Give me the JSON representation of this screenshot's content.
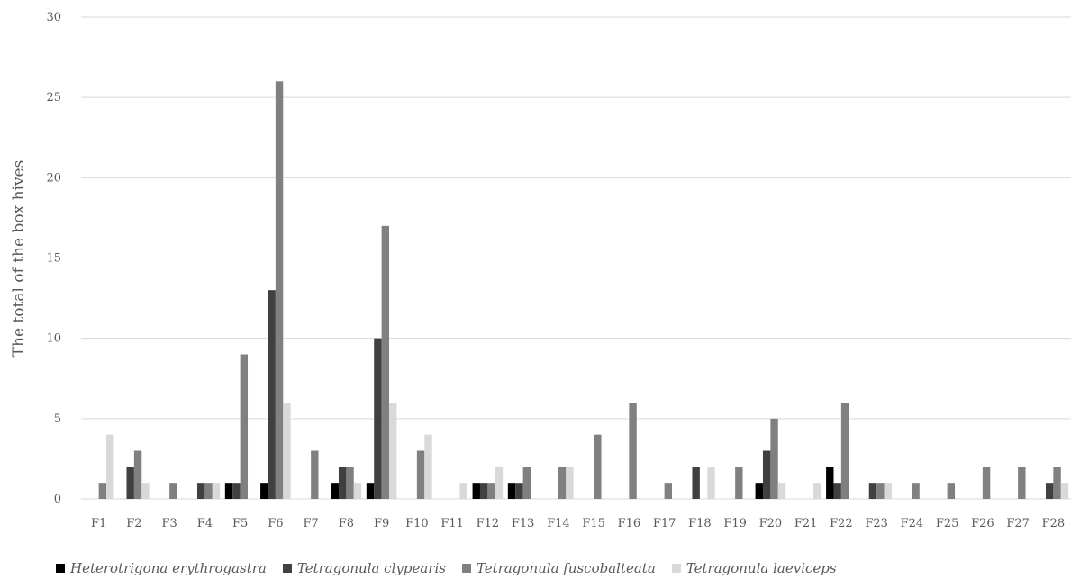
{
  "chart_data": {
    "type": "bar",
    "ylabel": "The total of the box hives",
    "ylim": [
      0,
      30
    ],
    "yticks": [
      0,
      5,
      10,
      15,
      20,
      25,
      30
    ],
    "grid": true,
    "legend_position": "bottom",
    "categories": [
      "F1",
      "F2",
      "F3",
      "F4",
      "F5",
      "F6",
      "F7",
      "F8",
      "F9",
      "F10",
      "F11",
      "F12",
      "F13",
      "F14",
      "F15",
      "F16",
      "F17",
      "F18",
      "F19",
      "F20",
      "F21",
      "F22",
      "F23",
      "F24",
      "F25",
      "F26",
      "F27",
      "F28"
    ],
    "series": [
      {
        "name": "Heterotrigona erythrogastra",
        "color": "#000000",
        "values": [
          0,
          0,
          0,
          0,
          1,
          1,
          0,
          1,
          1,
          0,
          0,
          1,
          1,
          0,
          0,
          0,
          0,
          0,
          0,
          1,
          0,
          2,
          0,
          0,
          0,
          0,
          0,
          0
        ]
      },
      {
        "name": "Tetragonula clypearis",
        "color": "#404040",
        "values": [
          0,
          2,
          0,
          1,
          1,
          13,
          0,
          2,
          10,
          0,
          0,
          1,
          1,
          0,
          0,
          0,
          0,
          2,
          0,
          3,
          0,
          1,
          1,
          0,
          0,
          0,
          0,
          1
        ]
      },
      {
        "name": "Tetragonula fuscobalteata",
        "color": "#808080",
        "values": [
          1,
          3,
          1,
          1,
          9,
          26,
          3,
          2,
          17,
          3,
          0,
          1,
          2,
          2,
          4,
          6,
          1,
          0,
          2,
          5,
          0,
          6,
          1,
          1,
          1,
          2,
          2,
          2
        ]
      },
      {
        "name": "Tetragonula laeviceps",
        "color": "#d9d9d9",
        "values": [
          4,
          1,
          0,
          1,
          0,
          6,
          0,
          1,
          6,
          4,
          1,
          2,
          0,
          2,
          0,
          0,
          0,
          2,
          0,
          1,
          1,
          0,
          1,
          0,
          0,
          0,
          0,
          1
        ]
      }
    ]
  }
}
